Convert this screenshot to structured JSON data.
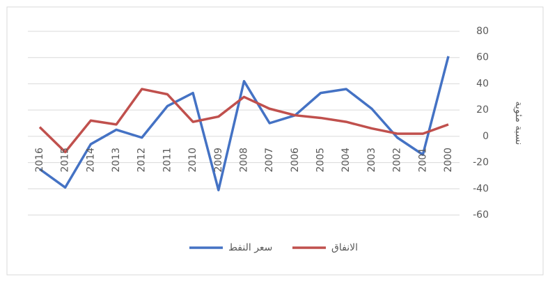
{
  "chart_data": {
    "type": "line",
    "y_label": "نسبة مئوية",
    "categories": [
      "2016",
      "2015",
      "2014",
      "2013",
      "2012",
      "2011",
      "2010",
      "2009",
      "2008",
      "2007",
      "2006",
      "2005",
      "2004",
      "2003",
      "2002",
      "2001",
      "2000"
    ],
    "series": [
      {
        "name": "سعر النفط",
        "color": "#4472c4",
        "values": [
          -25,
          -39,
          -6,
          5,
          -1,
          23,
          33,
          -41,
          42,
          10,
          16,
          33,
          36,
          21,
          -1,
          -14,
          61
        ]
      },
      {
        "name": "الانفاق",
        "color": "#c0504d",
        "values": [
          7,
          -12,
          12,
          9,
          36,
          32,
          11,
          15,
          30,
          21,
          16,
          14,
          11,
          6,
          2,
          2,
          9
        ]
      }
    ],
    "ylim": [
      -60,
      80
    ],
    "yticks": [
      -60,
      -40,
      -20,
      0,
      20,
      40,
      60,
      80
    ],
    "grid": true,
    "legend": "bottom"
  }
}
